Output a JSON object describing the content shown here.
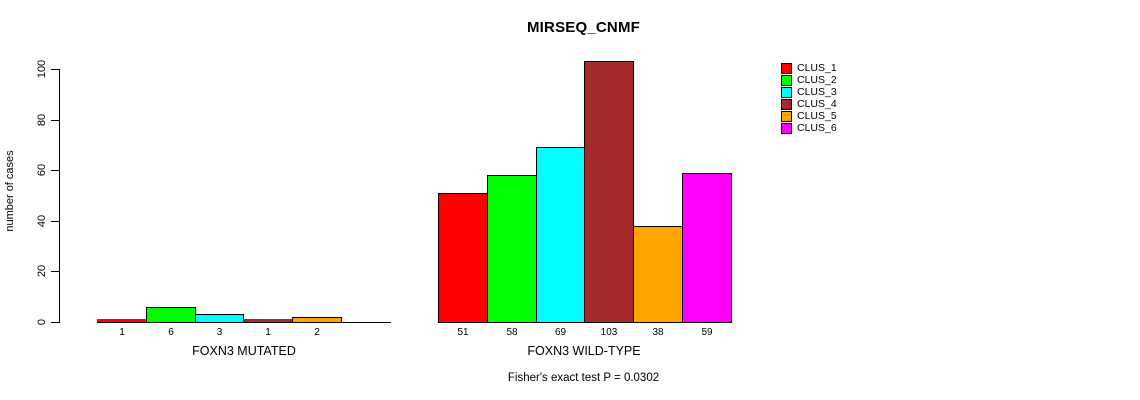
{
  "chart_data": {
    "type": "bar",
    "title": "MIRSEQ_CNMF",
    "ylabel": "number of cases",
    "xlabel": "",
    "subtitle": "Fisher's exact test P = 0.0302",
    "ylim": [
      0,
      100
    ],
    "yticks": [
      0,
      20,
      40,
      60,
      80,
      100
    ],
    "grid": false,
    "legend_position": "right",
    "categories": [
      "FOXN3 MUTATED",
      "FOXN3 WILD-TYPE"
    ],
    "series": [
      {
        "name": "CLUS_1",
        "color": "#FF0000",
        "values": [
          1,
          51
        ]
      },
      {
        "name": "CLUS_2",
        "color": "#00FF00",
        "values": [
          6,
          58
        ]
      },
      {
        "name": "CLUS_3",
        "color": "#00FFFF",
        "values": [
          3,
          69
        ]
      },
      {
        "name": "CLUS_4",
        "color": "#A52A2A",
        "values": [
          1,
          103
        ]
      },
      {
        "name": "CLUS_5",
        "color": "#FFA500",
        "values": [
          2,
          38
        ]
      },
      {
        "name": "CLUS_6",
        "color": "#FF00FF",
        "values": [
          0,
          59
        ]
      }
    ],
    "bar_value_labels": [
      [
        "1",
        "6",
        "3",
        "1",
        "2",
        ""
      ],
      [
        "51",
        "58",
        "69",
        "103",
        "38",
        "59"
      ]
    ],
    "axis_color": "#000000",
    "background_color": "#FFFFFF"
  }
}
